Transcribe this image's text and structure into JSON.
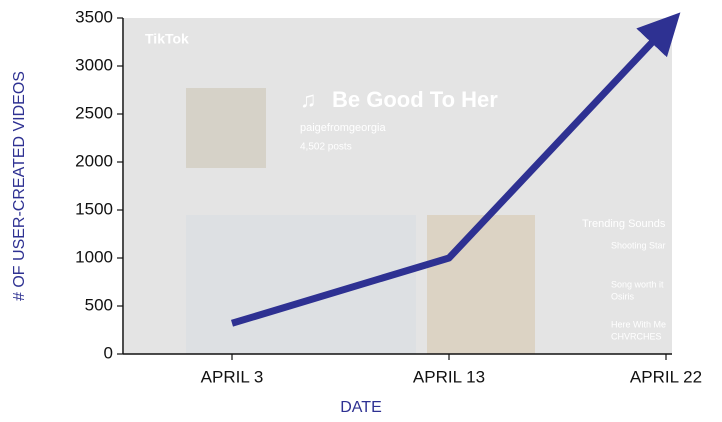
{
  "chart_data": {
    "type": "line",
    "x_label": "DATE",
    "y_label": "# OF USER-CREATED VIDEOS",
    "categories": [
      "APRIL 3",
      "APRIL 13",
      "APRIL 22"
    ],
    "values": [
      320,
      1000,
      3400
    ],
    "color": "#2e3192",
    "ylim": [
      0,
      3500
    ],
    "yticks": [
      0,
      500,
      1000,
      1500,
      2000,
      2500,
      3000,
      3500
    ]
  },
  "background_screenshot": {
    "app": "TikTok",
    "sound_title": "Be Good To Her",
    "author": "paigefromgeorgia",
    "posts": "4,502 posts",
    "sidebar_title": "Trending Sounds",
    "trending": [
      "Shooting Star",
      "Song worth it",
      "Osiris",
      "Here With Me",
      "CHVRCHES"
    ]
  }
}
